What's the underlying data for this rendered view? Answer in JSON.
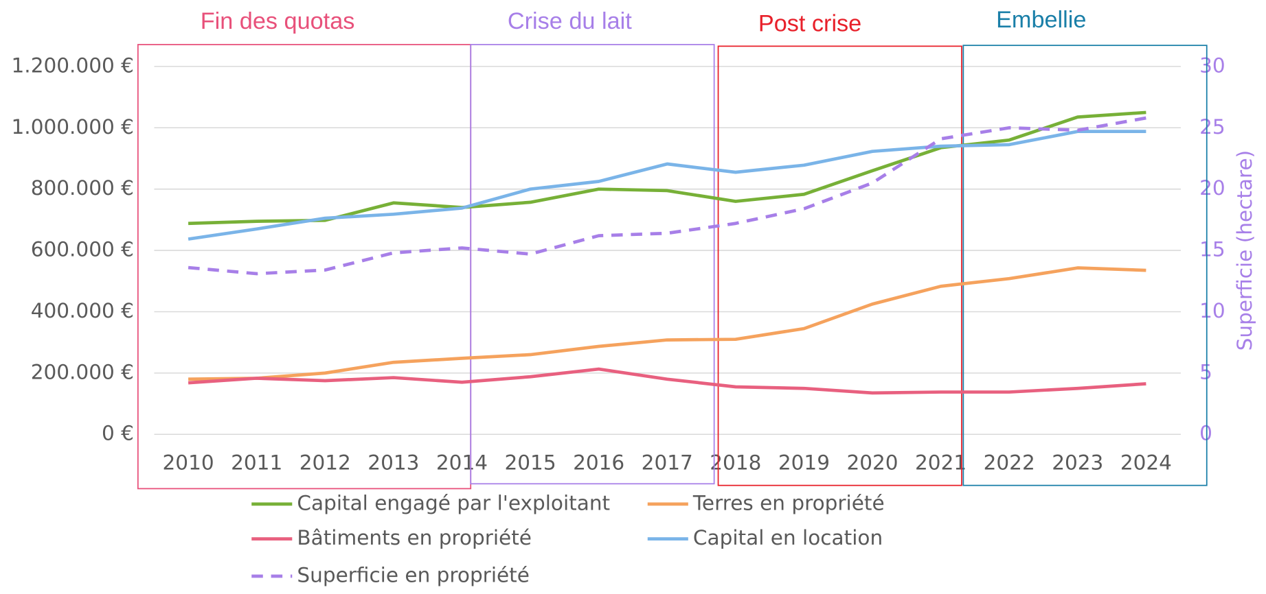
{
  "chart_data": {
    "type": "line",
    "categories": [
      "2010",
      "2011",
      "2012",
      "2013",
      "2014",
      "2015",
      "2016",
      "2017",
      "2018",
      "2019",
      "2020",
      "2021",
      "2022",
      "2023",
      "2024"
    ],
    "series": [
      {
        "name": "Capital engagé par l'exploitant",
        "color": "#77b037",
        "values": [
          688000,
          695000,
          698000,
          755000,
          740000,
          757000,
          800000,
          795000,
          760000,
          783000,
          860000,
          935000,
          960000,
          1035000,
          1050000
        ]
      },
      {
        "name": "Terres en propriété",
        "color": "#f5a25d",
        "values": [
          180000,
          183000,
          200000,
          235000,
          248000,
          260000,
          287000,
          308000,
          310000,
          345000,
          425000,
          483000,
          508000,
          543000,
          535000
        ]
      },
      {
        "name": "Bâtiments en propriété",
        "color": "#e8607f",
        "values": [
          168000,
          183000,
          175000,
          185000,
          170000,
          188000,
          213000,
          180000,
          155000,
          150000,
          135000,
          138000,
          138000,
          150000,
          165000
        ]
      },
      {
        "name": "Capital en location",
        "color": "#7ab4e8",
        "values": [
          637000,
          670000,
          705000,
          718000,
          738000,
          800000,
          825000,
          882000,
          855000,
          878000,
          923000,
          940000,
          945000,
          988000,
          988000
        ]
      },
      {
        "name": "Superficie en propriété",
        "color": "#a77fe8",
        "dashed": true,
        "axis": "y2",
        "values": [
          13.6,
          13.1,
          13.4,
          14.8,
          15.2,
          14.7,
          16.2,
          16.4,
          17.2,
          18.4,
          20.5,
          24.1,
          25.0,
          24.8,
          25.8
        ]
      }
    ],
    "ylim": [
      0,
      1200000
    ],
    "yticks": [
      {
        "value": 0,
        "label": "0 €"
      },
      {
        "value": 200000,
        "label": "200.000 €"
      },
      {
        "value": 400000,
        "label": "400.000 €"
      },
      {
        "value": 600000,
        "label": "600.000 €"
      },
      {
        "value": 800000,
        "label": "800.000 €"
      },
      {
        "value": 1000000,
        "label": "1.000.000 €"
      },
      {
        "value": 1200000,
        "label": "1.200.000 €"
      }
    ],
    "y2lim": [
      0,
      30
    ],
    "y2ticks": [
      0,
      5,
      10,
      15,
      20,
      25,
      30
    ],
    "y2label": "Superficie (hectare)",
    "grid": true,
    "annotations": [
      {
        "text": "Fin des quotas",
        "color": "#e8507a"
      },
      {
        "text": "Crise du lait",
        "color": "#a77fe8"
      },
      {
        "text": "Post crise",
        "color": "#e8202a"
      },
      {
        "text": "Embellie",
        "color": "#1a7fa8"
      }
    ]
  }
}
